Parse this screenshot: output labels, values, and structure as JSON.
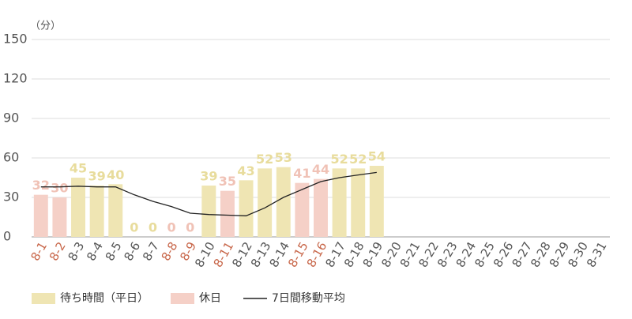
{
  "chart_data": {
    "type": "bar",
    "y_unit": "（分）",
    "categories": [
      "8-1",
      "8-2",
      "8-3",
      "8-4",
      "8-5",
      "8-6",
      "8-7",
      "8-8",
      "8-9",
      "8-10",
      "8-11",
      "8-12",
      "8-13",
      "8-14",
      "8-15",
      "8-16",
      "8-17",
      "8-18",
      "8-19",
      "8-20",
      "8-21",
      "8-22",
      "8-23",
      "8-24",
      "8-25",
      "8-26",
      "8-27",
      "8-28",
      "8-29",
      "8-30",
      "8-31"
    ],
    "series": [
      {
        "name": "待ち時間（平日）",
        "kind": "bar",
        "color": "#efe5b3",
        "label_color": "#e8dc9c",
        "values": [
          null,
          null,
          45,
          39,
          40,
          0,
          0,
          null,
          null,
          39,
          null,
          43,
          52,
          53,
          null,
          null,
          52,
          52,
          54,
          null,
          null,
          null,
          null,
          null,
          null,
          null,
          null,
          null,
          null,
          null,
          null
        ]
      },
      {
        "name": "休日",
        "kind": "bar",
        "color": "#f5d0c7",
        "label_color": "#f0c2b6",
        "holiday_label_color": "#c8674a",
        "values": [
          32,
          30,
          null,
          null,
          null,
          null,
          null,
          0,
          0,
          null,
          35,
          null,
          null,
          null,
          41,
          44,
          null,
          null,
          null,
          null,
          null,
          null,
          null,
          null,
          null,
          null,
          null,
          null,
          null,
          null,
          null
        ]
      },
      {
        "name": "7日間移動平均",
        "kind": "line",
        "color": "#222222",
        "values": [
          38,
          38,
          38.5,
          38,
          38,
          32,
          27,
          23,
          18,
          17,
          16.5,
          16,
          22,
          30,
          36,
          42,
          45,
          47,
          49,
          null,
          null,
          null,
          null,
          null,
          null,
          null,
          null,
          null,
          null,
          null,
          null
        ]
      }
    ],
    "ylim": [
      0,
      150
    ],
    "yticks": [
      0,
      30,
      60,
      90,
      120,
      150
    ],
    "grid": true
  }
}
